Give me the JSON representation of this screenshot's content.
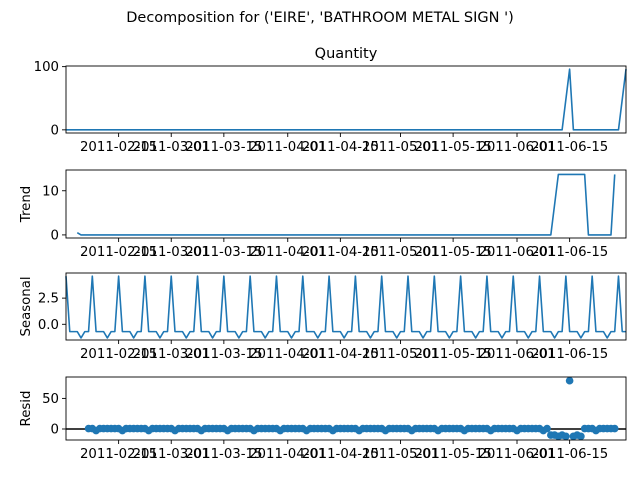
{
  "figure": {
    "suptitle": "Decomposition for ('EIRE', 'BATHROOM METAL SIGN ')"
  },
  "colors": {
    "series": "#1f77b4",
    "axes": "#000000",
    "background": "#ffffff"
  },
  "chart_data": [
    {
      "type": "line",
      "panel": "observed",
      "title": "Quantity",
      "ylabel": "",
      "x_range": [
        "2011-02-01",
        "2011-06-30"
      ],
      "ylim": [
        -5,
        101
      ],
      "yticks": [
        "0",
        "100"
      ],
      "xticks": [
        {
          "date": "2011-02-15",
          "label": "2011-02-15"
        },
        {
          "date": "2011-03-01",
          "label": "2011-03-01"
        },
        {
          "date": "2011-03-15",
          "label": "2011-03-15"
        },
        {
          "date": "2011-04-01",
          "label": "2011-04-01"
        },
        {
          "date": "2011-04-15",
          "label": "2011-04-15"
        },
        {
          "date": "2011-05-01",
          "label": "2011-05-01"
        },
        {
          "date": "2011-05-15",
          "label": "2011-05-15"
        },
        {
          "date": "2011-06-01",
          "label": "2011-06-01"
        },
        {
          "date": "2011-06-15",
          "label": "2011-06-15"
        }
      ],
      "points": [
        [
          "2011-02-01",
          0
        ],
        [
          "2011-06-13",
          0
        ],
        [
          "2011-06-15",
          96
        ],
        [
          "2011-06-16",
          0
        ],
        [
          "2011-06-28",
          0
        ],
        [
          "2011-06-30",
          96
        ]
      ]
    },
    {
      "type": "line",
      "panel": "trend",
      "title": "",
      "ylabel": "Trend",
      "x_range": [
        "2011-02-01",
        "2011-06-30"
      ],
      "ylim": [
        -0.7,
        14.7
      ],
      "yticks": [
        "0",
        "10"
      ],
      "xticks": [
        {
          "date": "2011-02-15",
          "label": "2011-02-15"
        },
        {
          "date": "2011-03-01",
          "label": "2011-03-01"
        },
        {
          "date": "2011-03-15",
          "label": "2011-03-15"
        },
        {
          "date": "2011-04-01",
          "label": "2011-04-01"
        },
        {
          "date": "2011-04-15",
          "label": "2011-04-15"
        },
        {
          "date": "2011-05-01",
          "label": "2011-05-01"
        },
        {
          "date": "2011-05-15",
          "label": "2011-05-15"
        },
        {
          "date": "2011-06-01",
          "label": "2011-06-01"
        },
        {
          "date": "2011-06-15",
          "label": "2011-06-15"
        }
      ],
      "points": [
        [
          "2011-02-04",
          0.5
        ],
        [
          "2011-02-05",
          0
        ],
        [
          "2011-06-10",
          0
        ],
        [
          "2011-06-12",
          13.7
        ],
        [
          "2011-06-19",
          13.7
        ],
        [
          "2011-06-20",
          0
        ],
        [
          "2011-06-26",
          0
        ],
        [
          "2011-06-27",
          13.7
        ]
      ]
    },
    {
      "type": "line",
      "panel": "seasonal",
      "title": "",
      "ylabel": "Seasonal",
      "x_range": [
        "2011-02-01",
        "2011-06-30"
      ],
      "ylim": [
        -1.5,
        4.9
      ],
      "yticks": [
        "0.0",
        "2.5"
      ],
      "xticks": [
        {
          "date": "2011-02-15",
          "label": "2011-02-15"
        },
        {
          "date": "2011-03-01",
          "label": "2011-03-01"
        },
        {
          "date": "2011-03-15",
          "label": "2011-03-15"
        },
        {
          "date": "2011-04-01",
          "label": "2011-04-01"
        },
        {
          "date": "2011-04-15",
          "label": "2011-04-15"
        },
        {
          "date": "2011-05-01",
          "label": "2011-05-01"
        },
        {
          "date": "2011-05-15",
          "label": "2011-05-15"
        },
        {
          "date": "2011-06-01",
          "label": "2011-06-01"
        },
        {
          "date": "2011-06-15",
          "label": "2011-06-15"
        }
      ],
      "period_days": 7,
      "first_peak": "2011-02-01",
      "weekly_pattern": [
        4.6,
        -0.7,
        -0.7,
        -0.7,
        -1.3,
        -0.7,
        -0.7
      ]
    },
    {
      "type": "scatter",
      "panel": "resid",
      "title": "",
      "ylabel": "Resid",
      "x_range": [
        "2011-02-01",
        "2011-06-30"
      ],
      "ylim": [
        -18,
        85
      ],
      "yticks": [
        "0",
        "50"
      ],
      "zero_line": true,
      "xticks": [
        {
          "date": "2011-02-15",
          "label": "2011-02-15"
        },
        {
          "date": "2011-03-01",
          "label": "2011-03-01"
        },
        {
          "date": "2011-03-15",
          "label": "2011-03-15"
        },
        {
          "date": "2011-04-01",
          "label": "2011-04-01"
        },
        {
          "date": "2011-04-15",
          "label": "2011-04-15"
        },
        {
          "date": "2011-05-01",
          "label": "2011-05-01"
        },
        {
          "date": "2011-05-15",
          "label": "2011-05-15"
        },
        {
          "date": "2011-06-01",
          "label": "2011-06-01"
        },
        {
          "date": "2011-06-15",
          "label": "2011-06-15"
        }
      ],
      "first_date": "2011-02-07",
      "last_date": "2011-06-27",
      "base_pattern": [
        0.7,
        0.7,
        -2.5,
        0.7,
        0.7,
        0.7,
        0.7
      ],
      "overrides": [
        [
          "2011-06-10",
          -10
        ],
        [
          "2011-06-11",
          -10
        ],
        [
          "2011-06-12",
          -12
        ],
        [
          "2011-06-13",
          -10
        ],
        [
          "2011-06-14",
          -12
        ],
        [
          "2011-06-15",
          79
        ],
        [
          "2011-06-16",
          -12
        ],
        [
          "2011-06-17",
          -10
        ],
        [
          "2011-06-18",
          -12
        ]
      ]
    }
  ]
}
